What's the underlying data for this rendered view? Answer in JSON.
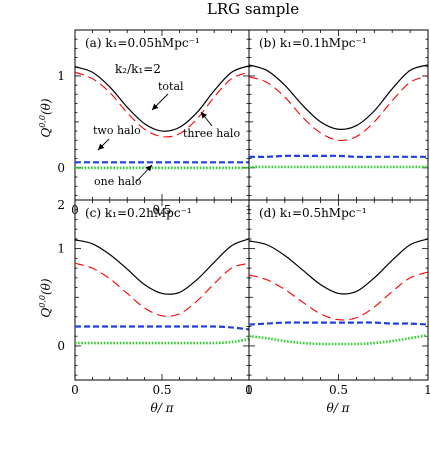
{
  "figure": {
    "title": "LRG sample",
    "xlabel": "θ/ π",
    "ylabel": "Q^{0,0}(θ)",
    "ylabel_main": "Q",
    "ylabel_sup": "0,0",
    "ylabel_arg": "(θ)"
  },
  "chart_data": [
    {
      "type": "line",
      "panel": "a",
      "label": "(a)  k₁=0.05hMpc⁻¹",
      "x": [
        0,
        0.1,
        0.2,
        0.3,
        0.4,
        0.5,
        0.6,
        0.7,
        0.8,
        0.9,
        1.0
      ],
      "xlim": [
        0,
        1
      ],
      "ylim": [
        -0.35,
        1.5
      ],
      "xticks": [
        "0",
        "0.5",
        "1"
      ],
      "yticks": [
        "0",
        "1"
      ],
      "ratio_label": "k₂/k₁=2",
      "annotations": [
        "total",
        "three halo",
        "two halo",
        "one halo"
      ],
      "series": [
        {
          "name": "total",
          "color": "#000000",
          "dash": "solid",
          "values": [
            1.1,
            1.04,
            0.88,
            0.66,
            0.48,
            0.4,
            0.44,
            0.6,
            0.84,
            1.04,
            1.11
          ]
        },
        {
          "name": "three halo",
          "color": "#ff0000",
          "dash": "long",
          "values": [
            1.04,
            0.97,
            0.82,
            0.6,
            0.42,
            0.34,
            0.37,
            0.53,
            0.77,
            0.97,
            1.04
          ]
        },
        {
          "name": "two halo",
          "color": "#1f3fe0",
          "dash": "short",
          "values": [
            0.06,
            0.06,
            0.06,
            0.06,
            0.06,
            0.06,
            0.06,
            0.06,
            0.06,
            0.06,
            0.06
          ]
        },
        {
          "name": "one halo",
          "color": "#2fd12f",
          "dash": "dot",
          "values": [
            0.0,
            0.0,
            0.0,
            0.0,
            0.0,
            0.0,
            0.0,
            0.0,
            0.0,
            0.0,
            0.0
          ]
        }
      ]
    },
    {
      "type": "line",
      "panel": "b",
      "label": "(b)  k₁=0.1hMpc⁻¹",
      "x": [
        0,
        0.1,
        0.2,
        0.3,
        0.4,
        0.5,
        0.6,
        0.7,
        0.8,
        0.9,
        1.0
      ],
      "xlim": [
        0,
        1
      ],
      "ylim": [
        -0.35,
        1.5
      ],
      "series": [
        {
          "name": "total",
          "color": "#000000",
          "dash": "solid",
          "values": [
            1.12,
            1.06,
            0.9,
            0.68,
            0.5,
            0.42,
            0.46,
            0.62,
            0.86,
            1.06,
            1.12
          ]
        },
        {
          "name": "three halo",
          "color": "#ff0000",
          "dash": "long",
          "values": [
            0.99,
            0.93,
            0.77,
            0.55,
            0.38,
            0.3,
            0.34,
            0.5,
            0.73,
            0.93,
            1.0
          ]
        },
        {
          "name": "two halo",
          "color": "#1f3fe0",
          "dash": "short",
          "values": [
            0.12,
            0.12,
            0.13,
            0.13,
            0.13,
            0.13,
            0.12,
            0.12,
            0.12,
            0.12,
            0.12
          ]
        },
        {
          "name": "one halo",
          "color": "#2fd12f",
          "dash": "dot",
          "values": [
            0.01,
            0.01,
            0.01,
            0.01,
            0.01,
            0.01,
            0.01,
            0.01,
            0.01,
            0.01,
            0.01
          ]
        }
      ]
    },
    {
      "type": "line",
      "panel": "c",
      "label": "(c)  k₁=0.2hMpc⁻¹",
      "x": [
        0,
        0.1,
        0.2,
        0.3,
        0.4,
        0.5,
        0.6,
        0.7,
        0.8,
        0.9,
        1.0
      ],
      "xlim": [
        0,
        1
      ],
      "ylim": [
        -0.35,
        1.5
      ],
      "xticks": [
        "0",
        "0.5",
        "1"
      ],
      "yticks": [
        "0",
        "1",
        "2"
      ],
      "series": [
        {
          "name": "total",
          "color": "#000000",
          "dash": "solid",
          "values": [
            1.09,
            1.05,
            0.94,
            0.79,
            0.63,
            0.54,
            0.55,
            0.68,
            0.86,
            1.03,
            1.1
          ]
        },
        {
          "name": "three halo",
          "color": "#ff0000",
          "dash": "long",
          "values": [
            0.85,
            0.8,
            0.69,
            0.54,
            0.39,
            0.31,
            0.33,
            0.46,
            0.64,
            0.8,
            0.85
          ]
        },
        {
          "name": "two halo",
          "color": "#1f3fe0",
          "dash": "short",
          "values": [
            0.2,
            0.2,
            0.2,
            0.2,
            0.2,
            0.2,
            0.2,
            0.2,
            0.2,
            0.19,
            0.17
          ]
        },
        {
          "name": "one halo",
          "color": "#2fd12f",
          "dash": "dot",
          "values": [
            0.03,
            0.03,
            0.03,
            0.03,
            0.03,
            0.03,
            0.03,
            0.03,
            0.03,
            0.04,
            0.07
          ]
        }
      ]
    },
    {
      "type": "line",
      "panel": "d",
      "label": "(d)  k₁=0.5hMpc⁻¹",
      "x": [
        0,
        0.1,
        0.2,
        0.3,
        0.4,
        0.5,
        0.6,
        0.7,
        0.8,
        0.9,
        1.0
      ],
      "xlim": [
        0,
        1
      ],
      "ylim": [
        -0.35,
        1.5
      ],
      "xticks": [
        "0",
        "0.5",
        "1"
      ],
      "series": [
        {
          "name": "total",
          "color": "#000000",
          "dash": "solid",
          "values": [
            1.08,
            1.04,
            0.93,
            0.78,
            0.63,
            0.54,
            0.56,
            0.7,
            0.88,
            1.04,
            1.1
          ]
        },
        {
          "name": "three halo",
          "color": "#ff0000",
          "dash": "long",
          "values": [
            0.73,
            0.68,
            0.58,
            0.45,
            0.33,
            0.27,
            0.29,
            0.4,
            0.56,
            0.7,
            0.76
          ]
        },
        {
          "name": "two halo",
          "color": "#1f3fe0",
          "dash": "short",
          "values": [
            0.22,
            0.23,
            0.24,
            0.24,
            0.24,
            0.24,
            0.24,
            0.24,
            0.23,
            0.23,
            0.22
          ]
        },
        {
          "name": "one halo",
          "color": "#2fd12f",
          "dash": "dot",
          "values": [
            0.1,
            0.08,
            0.05,
            0.03,
            0.02,
            0.02,
            0.02,
            0.03,
            0.05,
            0.08,
            0.11
          ]
        }
      ]
    }
  ]
}
